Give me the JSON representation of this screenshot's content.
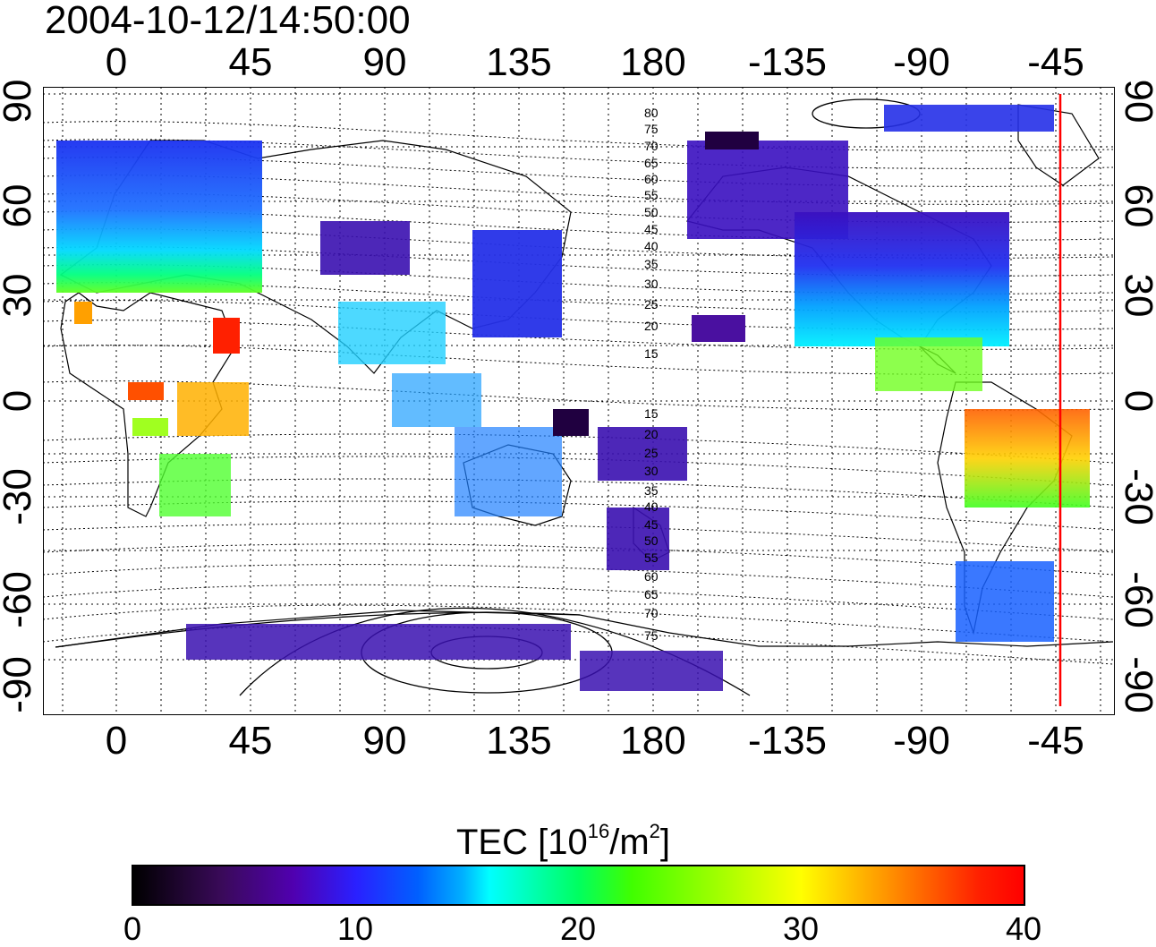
{
  "timestamp": "2004-10-12/14:50:00",
  "longitude_ticks": [
    "0",
    "45",
    "90",
    "135",
    "180",
    "-135",
    "-90",
    "-45"
  ],
  "latitude_ticks": [
    "90",
    "60",
    "30",
    "0",
    "-30",
    "-60",
    "-90"
  ],
  "contour_labels": {
    "north": [
      "80",
      "75",
      "70",
      "65",
      "60",
      "55",
      "50",
      "45",
      "40",
      "35",
      "30",
      "25",
      "20",
      "15"
    ],
    "south": [
      "15",
      "20",
      "25",
      "30",
      "35",
      "40",
      "45",
      "50",
      "55",
      "60",
      "65",
      "70",
      "75"
    ]
  },
  "colorbar": {
    "title_prefix": "TEC  [10",
    "title_exp1": "16",
    "title_mid": "/m",
    "title_exp2": "2",
    "title_suffix": "]",
    "ticks": [
      "0",
      "10",
      "20",
      "30",
      "40"
    ]
  },
  "marker_line_color": "#ff0000"
}
